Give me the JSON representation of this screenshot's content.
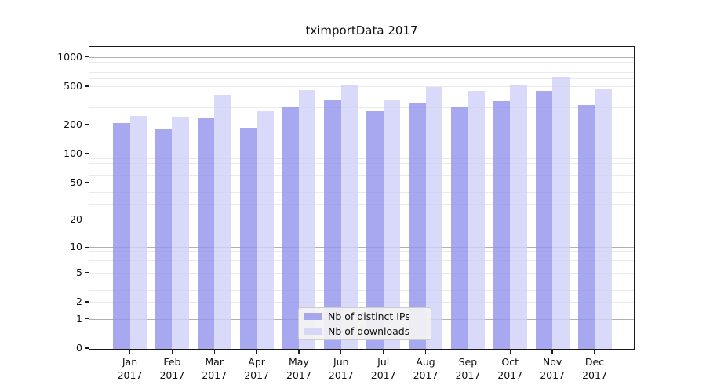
{
  "chart_data": {
    "type": "bar",
    "title": "tximportData 2017",
    "categories": [
      "Jan",
      "Feb",
      "Mar",
      "Apr",
      "May",
      "Jun",
      "Jul",
      "Aug",
      "Sep",
      "Oct",
      "Nov",
      "Dec"
    ],
    "year": "2017",
    "series": [
      {
        "name": "Nb of distinct IPs",
        "color": "#9595ee",
        "values": [
          209,
          179,
          233,
          187,
          310,
          364,
          282,
          336,
          304,
          349,
          447,
          322
        ]
      },
      {
        "name": "Nb of downloads",
        "color": "#d1d1f9",
        "values": [
          246,
          242,
          408,
          275,
          456,
          522,
          366,
          491,
          447,
          507,
          622,
          464
        ]
      }
    ],
    "xlabel": "",
    "ylabel": "",
    "yscale": "log1p",
    "ylim": [
      0,
      1300
    ],
    "ytick_values": [
      0,
      1,
      2,
      5,
      10,
      20,
      50,
      100,
      200,
      500,
      1000
    ],
    "grid": "both",
    "grid_major_color": "#b0b0b0",
    "grid_minor_color": "#eaeaea",
    "bar_alpha": 0.82,
    "legend_position": "lower center"
  },
  "legend": {
    "items": [
      {
        "label": "Nb of distinct IPs"
      },
      {
        "label": "Nb of downloads"
      }
    ]
  }
}
